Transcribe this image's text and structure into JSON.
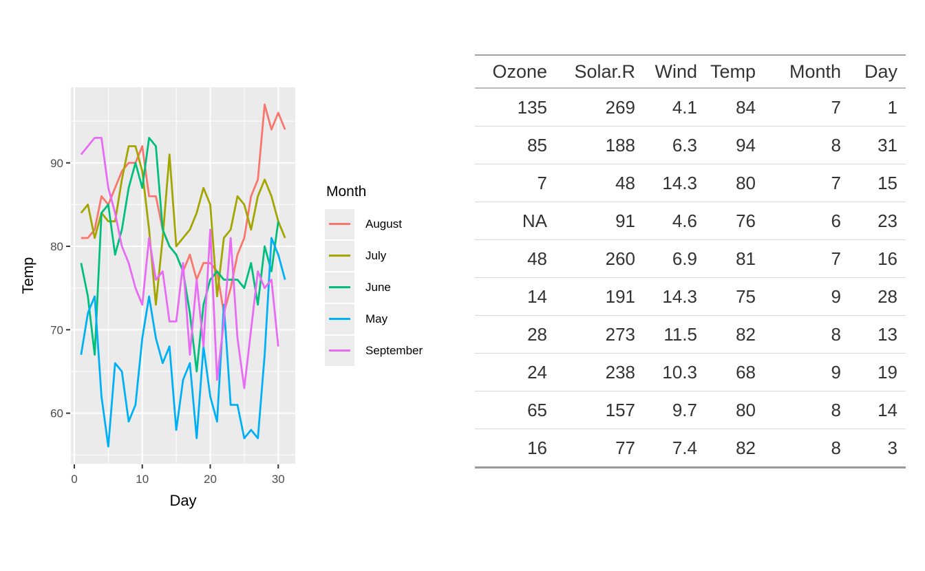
{
  "figure": {
    "background": "#FFFFFF"
  },
  "chart_data": {
    "type": "line",
    "title": "",
    "xlabel": "Day",
    "ylabel": "Temp",
    "legend_title": "Month",
    "legend_position": "right",
    "panel_background": "#EBEBEB",
    "grid_color": "#FFFFFF",
    "axis_text_color": "#4D4D4D",
    "axis_title_color": "#000000",
    "x_domain": [
      -0.5,
      32.5
    ],
    "y_domain": [
      53.95,
      99.05
    ],
    "x_major_ticks": [
      0,
      10,
      20,
      30
    ],
    "x_minor_ticks": [
      5,
      15,
      25
    ],
    "y_major_ticks": [
      60,
      70,
      80,
      90
    ],
    "y_minor_ticks": [
      55,
      65,
      75,
      85,
      95
    ],
    "x_start_day": 1,
    "series": [
      {
        "name": "August",
        "color": "#F8766D",
        "values": [
          81,
          81,
          82,
          86,
          85,
          87,
          89,
          90,
          90,
          92,
          86,
          86,
          82,
          80,
          79,
          77,
          79,
          76,
          78,
          78,
          77,
          72,
          75,
          79,
          81,
          86,
          88,
          97,
          94,
          96,
          94
        ]
      },
      {
        "name": "July",
        "color": "#A3A500",
        "values": [
          84,
          85,
          81,
          84,
          83,
          83,
          88,
          92,
          92,
          89,
          82,
          73,
          81,
          91,
          80,
          81,
          82,
          84,
          87,
          85,
          74,
          81,
          82,
          86,
          85,
          82,
          86,
          88,
          86,
          83,
          81
        ]
      },
      {
        "name": "June",
        "color": "#00BF7D",
        "values": [
          78,
          74,
          67,
          84,
          85,
          79,
          82,
          87,
          90,
          87,
          93,
          92,
          82,
          80,
          79,
          77,
          72,
          65,
          73,
          76,
          77,
          76,
          76,
          76,
          75,
          78,
          73,
          80,
          77,
          83
        ]
      },
      {
        "name": "May",
        "color": "#00B0F6",
        "values": [
          67,
          72,
          74,
          62,
          56,
          66,
          65,
          59,
          61,
          69,
          74,
          69,
          66,
          68,
          58,
          64,
          66,
          57,
          68,
          62,
          59,
          73,
          61,
          61,
          57,
          58,
          57,
          67,
          81,
          79,
          76
        ]
      },
      {
        "name": "September",
        "color": "#E76BF3",
        "values": [
          91,
          92,
          93,
          93,
          87,
          84,
          80,
          78,
          75,
          73,
          81,
          76,
          77,
          71,
          71,
          78,
          67,
          76,
          68,
          82,
          64,
          71,
          81,
          69,
          63,
          70,
          77,
          75,
          76,
          68
        ]
      }
    ]
  },
  "table": {
    "columns": [
      "Ozone",
      "Solar.R",
      "Wind",
      "Temp",
      "Month",
      "Day"
    ],
    "rows": [
      [
        "135",
        "269",
        "4.1",
        "84",
        "7",
        "1"
      ],
      [
        "85",
        "188",
        "6.3",
        "94",
        "8",
        "31"
      ],
      [
        "7",
        "48",
        "14.3",
        "80",
        "7",
        "15"
      ],
      [
        "NA",
        "91",
        "4.6",
        "76",
        "6",
        "23"
      ],
      [
        "48",
        "260",
        "6.9",
        "81",
        "7",
        "16"
      ],
      [
        "14",
        "191",
        "14.3",
        "75",
        "9",
        "28"
      ],
      [
        "28",
        "273",
        "11.5",
        "82",
        "8",
        "13"
      ],
      [
        "24",
        "238",
        "10.3",
        "68",
        "9",
        "19"
      ],
      [
        "65",
        "157",
        "9.7",
        "80",
        "8",
        "14"
      ],
      [
        "16",
        "77",
        "7.4",
        "82",
        "8",
        "3"
      ]
    ]
  }
}
